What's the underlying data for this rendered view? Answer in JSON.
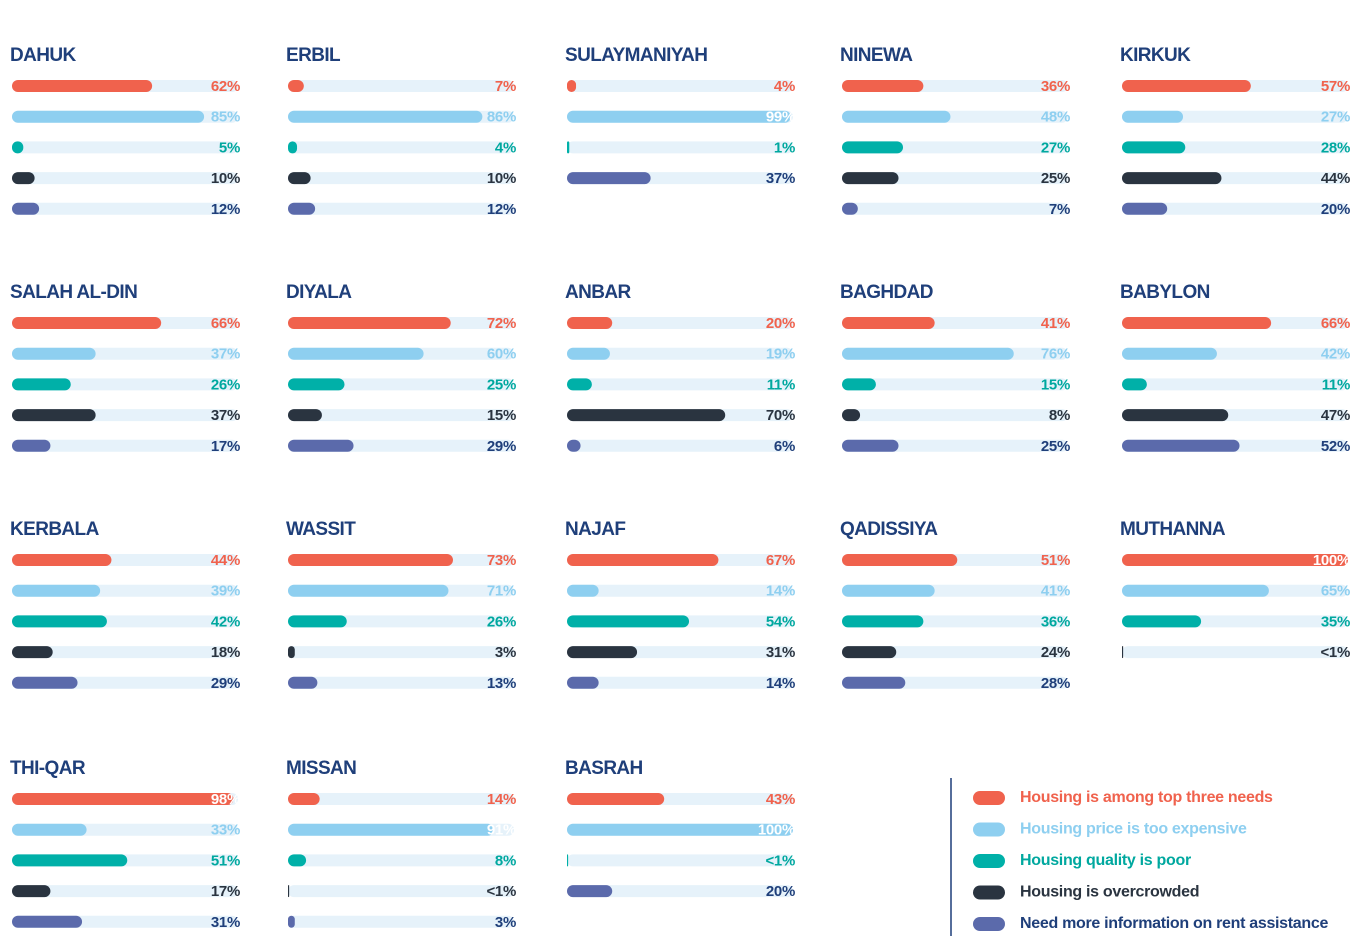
{
  "legend": [
    {
      "name": "Housing is among top three needs",
      "color": "#f0624d",
      "label_color": "#f0624d"
    },
    {
      "name": "Housing price is too expensive",
      "color": "#8ecff0",
      "label_color": "#8ecff0"
    },
    {
      "name": "Housing quality is poor",
      "color": "#00b0a8",
      "label_color": "#00a89f"
    },
    {
      "name": "Housing is overcrowded",
      "color": "#2a3440",
      "label_color": "#2a3440"
    },
    {
      "name": "Need more information on rent assistance",
      "color": "#5b6aab",
      "label_color": "#1f3f7a"
    }
  ],
  "chart_data": [
    {
      "type": "bar",
      "title": "DAHUK",
      "values": [
        62,
        85,
        5,
        10,
        12
      ],
      "value_labels": [
        "62%",
        "85%",
        "5%",
        "10%",
        "12%"
      ]
    },
    {
      "type": "bar",
      "title": "ERBIL",
      "values": [
        7,
        86,
        4,
        10,
        12
      ],
      "value_labels": [
        "7%",
        "86%",
        "4%",
        "10%",
        "12%"
      ]
    },
    {
      "type": "bar",
      "title": "SULAYMANIYAH",
      "values": [
        4,
        99,
        1,
        null,
        37
      ],
      "value_labels": [
        "4%",
        "99%",
        "1%",
        null,
        "37%"
      ]
    },
    {
      "type": "bar",
      "title": "NINEWA",
      "values": [
        36,
        48,
        27,
        25,
        7
      ],
      "value_labels": [
        "36%",
        "48%",
        "27%",
        "25%",
        "7%"
      ]
    },
    {
      "type": "bar",
      "title": "KIRKUK",
      "values": [
        57,
        27,
        28,
        44,
        20
      ],
      "value_labels": [
        "57%",
        "27%",
        "28%",
        "44%",
        "20%"
      ]
    },
    {
      "type": "bar",
      "title": "SALAH AL-DIN",
      "values": [
        66,
        37,
        26,
        37,
        17
      ],
      "value_labels": [
        "66%",
        "37%",
        "26%",
        "37%",
        "17%"
      ]
    },
    {
      "type": "bar",
      "title": "DIYALA",
      "values": [
        72,
        60,
        25,
        15,
        29
      ],
      "value_labels": [
        "72%",
        "60%",
        "25%",
        "15%",
        "29%"
      ]
    },
    {
      "type": "bar",
      "title": "ANBAR",
      "values": [
        20,
        19,
        11,
        70,
        6
      ],
      "value_labels": [
        "20%",
        "19%",
        "11%",
        "70%",
        "6%"
      ]
    },
    {
      "type": "bar",
      "title": "BAGHDAD",
      "values": [
        41,
        76,
        15,
        8,
        25
      ],
      "value_labels": [
        "41%",
        "76%",
        "15%",
        "8%",
        "25%"
      ]
    },
    {
      "type": "bar",
      "title": "BABYLON",
      "values": [
        66,
        42,
        11,
        47,
        52
      ],
      "value_labels": [
        "66%",
        "42%",
        "11%",
        "47%",
        "52%"
      ]
    },
    {
      "type": "bar",
      "title": "KERBALA",
      "values": [
        44,
        39,
        42,
        18,
        29
      ],
      "value_labels": [
        "44%",
        "39%",
        "42%",
        "18%",
        "29%"
      ]
    },
    {
      "type": "bar",
      "title": "WASSIT",
      "values": [
        73,
        71,
        26,
        3,
        13
      ],
      "value_labels": [
        "73%",
        "71%",
        "26%",
        "3%",
        "13%"
      ]
    },
    {
      "type": "bar",
      "title": "NAJAF",
      "values": [
        67,
        14,
        54,
        31,
        14
      ],
      "value_labels": [
        "67%",
        "14%",
        "54%",
        "31%",
        "14%"
      ]
    },
    {
      "type": "bar",
      "title": "QADISSIYA",
      "values": [
        51,
        41,
        36,
        24,
        28
      ],
      "value_labels": [
        "51%",
        "41%",
        "36%",
        "24%",
        "28%"
      ]
    },
    {
      "type": "bar",
      "title": "MUTHANNA",
      "values": [
        100,
        65,
        35,
        0.5,
        null
      ],
      "value_labels": [
        "100%",
        "65%",
        "35%",
        "<1%",
        null
      ]
    },
    {
      "type": "bar",
      "title": "THI-QAR",
      "values": [
        98,
        33,
        51,
        17,
        31
      ],
      "value_labels": [
        "98%",
        "33%",
        "51%",
        "17%",
        "31%"
      ]
    },
    {
      "type": "bar",
      "title": "MISSAN",
      "values": [
        14,
        91,
        8,
        0.5,
        3
      ],
      "value_labels": [
        "14%",
        "91%",
        "8%",
        "<1%",
        "3%"
      ]
    },
    {
      "type": "bar",
      "title": "BASRAH",
      "values": [
        43,
        100,
        0.5,
        null,
        20
      ],
      "value_labels": [
        "43%",
        "100%",
        "<1%",
        null,
        "20%"
      ]
    }
  ]
}
